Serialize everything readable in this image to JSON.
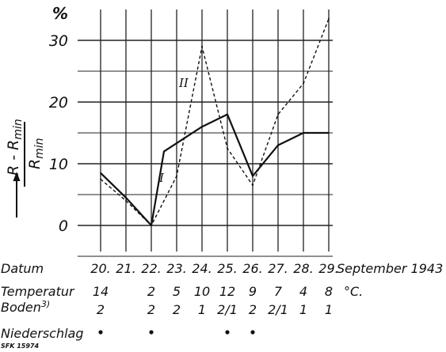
{
  "chart_data": {
    "type": "line",
    "y_unit": "%",
    "ylabel_numerator": "R - R",
    "ylabel_numerator_sub": "min",
    "ylabel_denominator": "R",
    "ylabel_denominator_sub": "min",
    "ylim": [
      -5,
      35
    ],
    "yticks": [
      0,
      10,
      20,
      30
    ],
    "grid": true,
    "x": [
      20,
      21,
      22,
      22.5,
      23,
      24,
      25,
      26,
      27,
      28,
      29
    ],
    "x_tick_positions": [
      20,
      21,
      22,
      23,
      24,
      25,
      26,
      27,
      28,
      29
    ],
    "x_tick_labels": [
      "20.",
      "21.",
      "22.",
      "23.",
      "24.",
      "25.",
      "26.",
      "27.",
      "28.",
      "29."
    ],
    "month_label": "September 1943",
    "series": [
      {
        "name": "I",
        "style": "solid",
        "values": [
          8.5,
          4.5,
          0,
          12,
          16,
          18,
          8,
          13,
          15,
          15
        ],
        "x": [
          20,
          21,
          22,
          22.5,
          24,
          25,
          26,
          27,
          28,
          29
        ]
      },
      {
        "name": "II",
        "style": "dashed",
        "values": [
          7.5,
          4,
          0,
          8,
          29,
          12.5,
          6.5,
          18,
          23,
          33.5
        ],
        "x": [
          20,
          21,
          22,
          23,
          24,
          25,
          26,
          27,
          28,
          29
        ]
      }
    ],
    "table": {
      "datum_label": "Datum",
      "temperatur_label": "Temperatur",
      "temperatur_unit": "°C.",
      "temperatur": [
        {
          "day": 20,
          "value": "14"
        },
        {
          "day": 22,
          "value": "2"
        },
        {
          "day": 23,
          "value": "5"
        },
        {
          "day": 24,
          "value": "10"
        },
        {
          "day": 25,
          "value": "12"
        },
        {
          "day": 26,
          "value": "9"
        },
        {
          "day": 27,
          "value": "7"
        },
        {
          "day": 28,
          "value": "4"
        },
        {
          "day": 29,
          "value": "8"
        }
      ],
      "boden_label": "Boden",
      "boden_footnote": "3)",
      "boden": [
        {
          "day": 20,
          "value": "2"
        },
        {
          "day": 22,
          "value": "2"
        },
        {
          "day": 23,
          "value": "2"
        },
        {
          "day": 24,
          "value": "1"
        },
        {
          "day": 25,
          "value": "2/1"
        },
        {
          "day": 26,
          "value": "2"
        },
        {
          "day": 27,
          "value": "2/1"
        },
        {
          "day": 28,
          "value": "1"
        },
        {
          "day": 29,
          "value": "1"
        }
      ],
      "niederschlag_label": "Niederschlag",
      "niederschlag_days": [
        20,
        22,
        25,
        26
      ]
    }
  },
  "footer_code": "SFK 15974"
}
